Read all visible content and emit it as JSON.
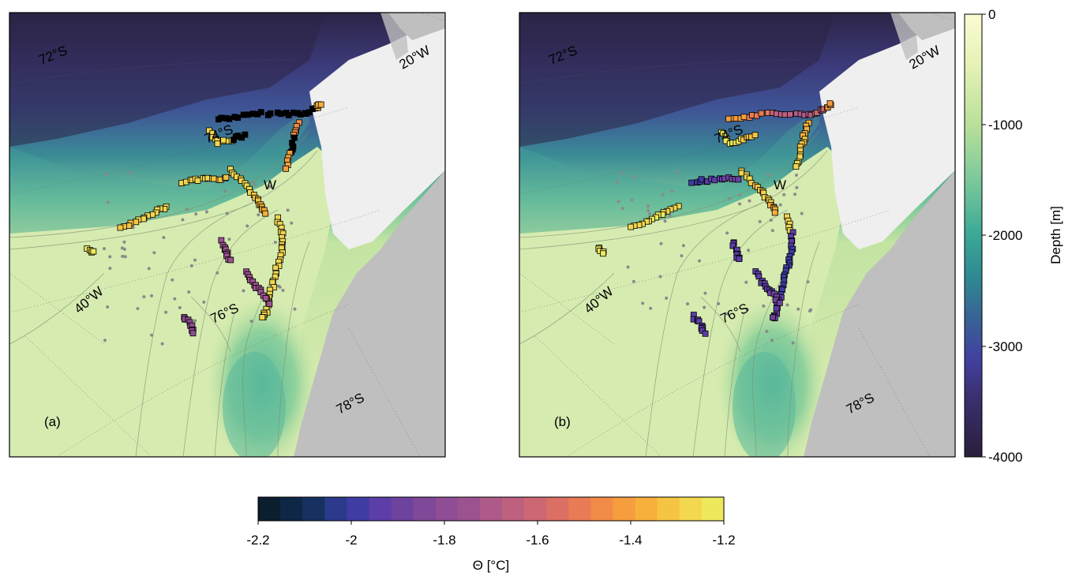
{
  "panels": [
    {
      "id": "a",
      "label": "(a)",
      "grid_labels": {
        "lat_72": "72°S",
        "lat_74": "74°S",
        "lat_76": "76°S",
        "lat_78": "78°S",
        "lon_20": "20°W",
        "lon_30": "W",
        "lon_40": "40°W"
      }
    },
    {
      "id": "b",
      "label": "(b)",
      "grid_labels": {
        "lat_72": "72°S",
        "lat_74": "74°S",
        "lat_76": "76°S",
        "lat_78": "78°S",
        "lon_20": "20°W",
        "lon_30": "W",
        "lon_40": "40°W"
      }
    }
  ],
  "depth_colorbar": {
    "label": "Depth [m]",
    "ticks": [
      "0",
      "-1000",
      "-2000",
      "-3000",
      "-4000"
    ],
    "range": [
      -4000,
      0
    ]
  },
  "theta_colorbar": {
    "label": "Θ [°C]",
    "ticks": [
      "-2.2",
      "-2",
      "-1.8",
      "-1.6",
      "-1.4",
      "-1.2"
    ],
    "range": [
      -2.2,
      -1.2
    ],
    "colors": [
      "#0b1e2d",
      "#0f2747",
      "#16305f",
      "#2c3a8c",
      "#3f3ca3",
      "#5c3ea8",
      "#6e429f",
      "#7f4898",
      "#8e4d94",
      "#9d5290",
      "#ad5a89",
      "#bd617f",
      "#cd6774",
      "#dc6f64",
      "#e97b55",
      "#f28b48",
      "#f59d3f",
      "#f7b03c",
      "#f6c443",
      "#f2d74f",
      "#eee95c"
    ]
  },
  "colors": {
    "land": "#bfbfbf",
    "ice_shelf": "#efefef",
    "shelf": "#d7ecb2",
    "deep": "#2a1f3c"
  }
}
